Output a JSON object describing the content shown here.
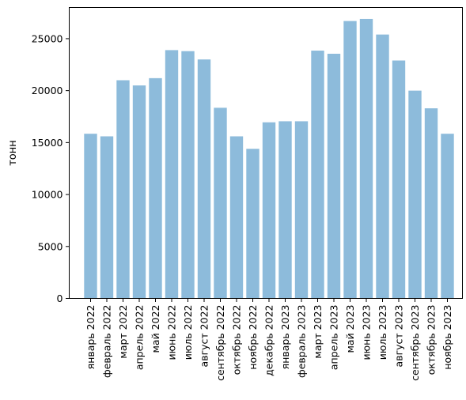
{
  "chart_data": {
    "type": "bar",
    "title": "",
    "xlabel": "",
    "ylabel": "тонн",
    "ylim": [
      0,
      28000
    ],
    "y_ticks": [
      0,
      5000,
      10000,
      15000,
      20000,
      25000
    ],
    "grid": false,
    "bar_color": "#8dbbdb",
    "categories": [
      "январь 2022",
      "февраль 2022",
      "март 2022",
      "апрель 2022",
      "май 2022",
      "июнь 2022",
      "июль 2022",
      "август 2022",
      "сентябрь 2022",
      "октябрь 2022",
      "ноябрь 2022",
      "декабрь 2022",
      "январь 2023",
      "февраль 2023",
      "март 2023",
      "апрель 2023",
      "май 2023",
      "июнь 2023",
      "июль 2023",
      "август 2023",
      "сентябрь 2023",
      "октябрь 2023",
      "ноябрь 2023"
    ],
    "values": [
      15850,
      15600,
      21000,
      20500,
      21200,
      23900,
      23800,
      23000,
      18350,
      15600,
      14400,
      16950,
      17050,
      17050,
      23850,
      23550,
      26700,
      26900,
      25400,
      22900,
      20000,
      18300,
      15850
    ]
  }
}
